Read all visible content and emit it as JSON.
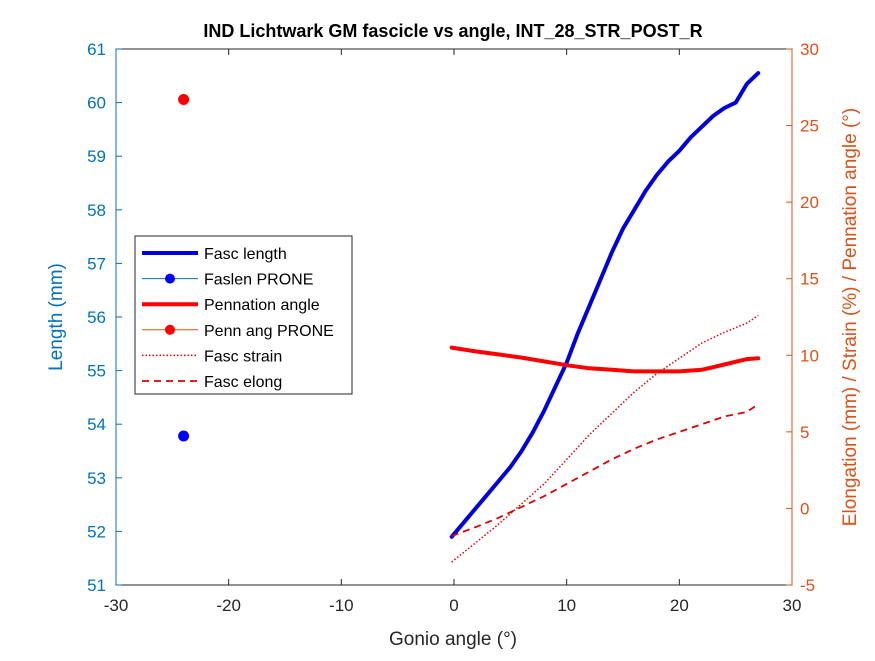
{
  "chart_data": {
    "type": "line",
    "title": "IND Lichtwark GM fascicle vs angle, INT_28_STR_POST_R",
    "xlabel": "Gonio angle (°)",
    "ylabel_left": "Length (mm)",
    "ylabel_right": "Elongation (mm) / Strain (%) / Pennation angle (°)",
    "xlim": [
      -30,
      30
    ],
    "ylim_left": [
      51,
      61
    ],
    "ylim_right": [
      -5,
      30
    ],
    "xticks": [
      "-30",
      "-20",
      "-10",
      "0",
      "10",
      "20",
      "30"
    ],
    "yticks_left": [
      "51",
      "52",
      "53",
      "54",
      "55",
      "56",
      "57",
      "58",
      "59",
      "60",
      "61"
    ],
    "yticks_right": [
      "-5",
      "0",
      "5",
      "10",
      "15",
      "20",
      "25",
      "30"
    ],
    "grid": false,
    "legend_position": "middle-left",
    "colors": {
      "blue": "#0000DD",
      "red": "#FF0000",
      "left_axis": "#0072BD",
      "right_axis": "#D95319",
      "points_blue": "#0000FF"
    },
    "series": [
      {
        "name": "Fasc length",
        "axis": "left",
        "style": "solid-thick",
        "color": "#0000DD",
        "x": [
          -0.2,
          1,
          2,
          3,
          4,
          5,
          6,
          7,
          8,
          9,
          10,
          11,
          12,
          13,
          14,
          15,
          16,
          17,
          18,
          19,
          20,
          21,
          22,
          23,
          24,
          25,
          26,
          27
        ],
        "y": [
          51.9,
          52.2,
          52.45,
          52.7,
          52.95,
          53.2,
          53.5,
          53.85,
          54.25,
          54.7,
          55.15,
          55.7,
          56.2,
          56.7,
          57.2,
          57.65,
          58.0,
          58.35,
          58.65,
          58.9,
          59.1,
          59.35,
          59.55,
          59.75,
          59.9,
          60.0,
          60.35,
          60.55
        ]
      },
      {
        "name": "Faslen PRONE",
        "axis": "left",
        "style": "marker",
        "color": "#0000FF",
        "x": [
          -24
        ],
        "y": [
          53.78
        ]
      },
      {
        "name": "Pennation angle",
        "axis": "right",
        "style": "solid-thick",
        "color": "#FF0000",
        "x": [
          -0.2,
          2,
          4,
          6,
          8,
          10,
          12,
          14,
          16,
          18,
          20,
          22,
          24,
          26,
          27
        ],
        "y": [
          10.5,
          10.25,
          10.05,
          9.85,
          9.6,
          9.35,
          9.15,
          9.05,
          8.95,
          8.95,
          8.95,
          9.05,
          9.4,
          9.75,
          9.8
        ]
      },
      {
        "name": "Penn ang PRONE",
        "axis": "right",
        "style": "marker",
        "color": "#FF0000",
        "x": [
          -24
        ],
        "y": [
          26.7
        ]
      },
      {
        "name": "Fasc strain",
        "axis": "right",
        "style": "dotted",
        "color": "#E00000",
        "x": [
          -0.2,
          2,
          4,
          6,
          8,
          10,
          12,
          14,
          16,
          18,
          20,
          22,
          24,
          26,
          27
        ],
        "y": [
          -3.5,
          -2.2,
          -1.0,
          0.3,
          1.6,
          3.2,
          4.8,
          6.2,
          7.6,
          8.8,
          9.8,
          10.8,
          11.5,
          12.1,
          12.6
        ]
      },
      {
        "name": "Fasc elong",
        "axis": "right",
        "style": "dashed",
        "color": "#E00000",
        "x": [
          -0.2,
          2,
          4,
          6,
          8,
          10,
          12,
          14,
          16,
          18,
          20,
          22,
          24,
          26,
          27
        ],
        "y": [
          -1.8,
          -1.2,
          -0.6,
          0.1,
          0.8,
          1.6,
          2.4,
          3.2,
          3.9,
          4.5,
          5.0,
          5.5,
          6.0,
          6.3,
          6.8
        ]
      }
    ]
  }
}
